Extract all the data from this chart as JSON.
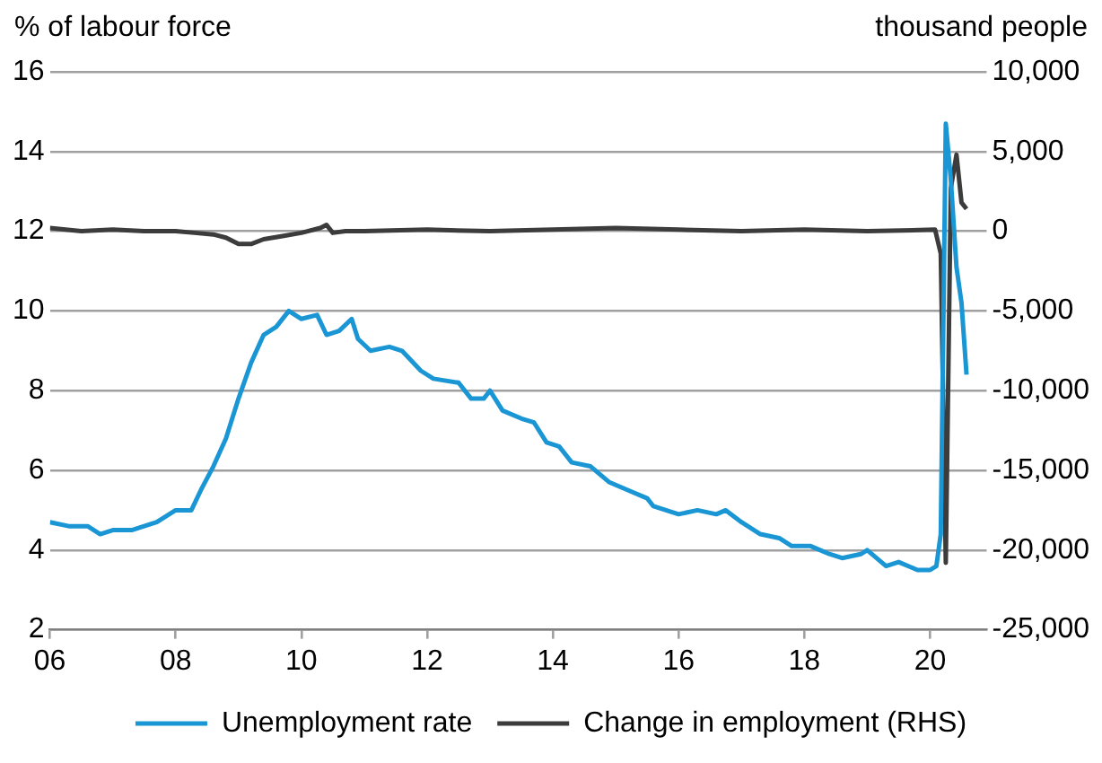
{
  "chart_data": {
    "type": "line",
    "ylabel": "% of labour force",
    "y2label": "thousand people",
    "xlim": [
      2006,
      2020.9
    ],
    "xticks": [
      {
        "value": 2006,
        "label": "06"
      },
      {
        "value": 2008,
        "label": "08"
      },
      {
        "value": 2010,
        "label": "10"
      },
      {
        "value": 2012,
        "label": "12"
      },
      {
        "value": 2014,
        "label": "14"
      },
      {
        "value": 2016,
        "label": "16"
      },
      {
        "value": 2018,
        "label": "18"
      },
      {
        "value": 2020,
        "label": "20"
      }
    ],
    "ylim": [
      2,
      16
    ],
    "yticks": [
      2,
      4,
      6,
      8,
      10,
      12,
      14,
      16
    ],
    "y2lim": [
      -25000,
      10000
    ],
    "y2ticks": [
      {
        "value": -25000,
        "label": "-25,000"
      },
      {
        "value": -20000,
        "label": "-20,000"
      },
      {
        "value": -15000,
        "label": "-15,000"
      },
      {
        "value": -10000,
        "label": "-10,000"
      },
      {
        "value": -5000,
        "label": "-5,000"
      },
      {
        "value": 0,
        "label": "0"
      },
      {
        "value": 5000,
        "label": "5,000"
      },
      {
        "value": 10000,
        "label": "10,000"
      }
    ],
    "grid": "y",
    "legend": "bottom",
    "marker": "none",
    "line_style": "solid",
    "series": [
      {
        "name": "Unemployment rate",
        "color": "#1a96d4",
        "x": [
          2006.0,
          2006.3,
          2006.6,
          2006.8,
          2007.0,
          2007.3,
          2007.5,
          2007.7,
          2008.0,
          2008.25,
          2008.4,
          2008.6,
          2008.8,
          2009.0,
          2009.2,
          2009.4,
          2009.6,
          2009.8,
          2010.0,
          2010.25,
          2010.4,
          2010.6,
          2010.8,
          2010.9,
          2011.1,
          2011.4,
          2011.6,
          2011.9,
          2012.1,
          2012.5,
          2012.7,
          2012.9,
          2013.0,
          2013.2,
          2013.5,
          2013.7,
          2013.9,
          2014.1,
          2014.3,
          2014.6,
          2014.9,
          2015.2,
          2015.5,
          2015.6,
          2015.8,
          2016.0,
          2016.3,
          2016.6,
          2016.75,
          2017.0,
          2017.3,
          2017.6,
          2017.8,
          2018.1,
          2018.4,
          2018.6,
          2018.9,
          2019.0,
          2019.3,
          2019.5,
          2019.8,
          2020.0,
          2020.1,
          2020.17,
          2020.25,
          2020.33,
          2020.42,
          2020.5,
          2020.58
        ],
        "values": [
          4.7,
          4.6,
          4.6,
          4.4,
          4.5,
          4.5,
          4.6,
          4.7,
          5.0,
          5.0,
          5.5,
          6.1,
          6.8,
          7.8,
          8.7,
          9.4,
          9.6,
          10.0,
          9.8,
          9.9,
          9.4,
          9.5,
          9.8,
          9.3,
          9.0,
          9.1,
          9.0,
          8.5,
          8.3,
          8.2,
          7.8,
          7.8,
          8.0,
          7.5,
          7.3,
          7.2,
          6.7,
          6.6,
          6.2,
          6.1,
          5.7,
          5.5,
          5.3,
          5.1,
          5.0,
          4.9,
          5.0,
          4.9,
          5.0,
          4.7,
          4.4,
          4.3,
          4.1,
          4.1,
          3.9,
          3.8,
          3.9,
          4.0,
          3.6,
          3.7,
          3.5,
          3.5,
          3.6,
          4.4,
          14.7,
          13.3,
          11.1,
          10.2,
          8.4
        ]
      },
      {
        "name": "Change in employment (RHS)",
        "color": "#3c3c3c",
        "axis": "y2",
        "x": [
          2006.0,
          2006.5,
          2007.0,
          2007.5,
          2008.0,
          2008.3,
          2008.6,
          2008.8,
          2009.0,
          2009.2,
          2009.4,
          2009.7,
          2010.0,
          2010.3,
          2010.4,
          2010.5,
          2010.7,
          2011.0,
          2012.0,
          2013.0,
          2014.0,
          2015.0,
          2016.0,
          2017.0,
          2018.0,
          2019.0,
          2020.08,
          2020.17,
          2020.25,
          2020.33,
          2020.42,
          2020.5,
          2020.58
        ],
        "values": [
          200,
          0,
          100,
          0,
          0,
          -100,
          -200,
          -400,
          -800,
          -800,
          -500,
          -300,
          -100,
          200,
          400,
          -100,
          0,
          0,
          100,
          0,
          100,
          200,
          100,
          0,
          100,
          0,
          100,
          -1400,
          -20800,
          2700,
          4800,
          1800,
          1400
        ]
      }
    ]
  }
}
